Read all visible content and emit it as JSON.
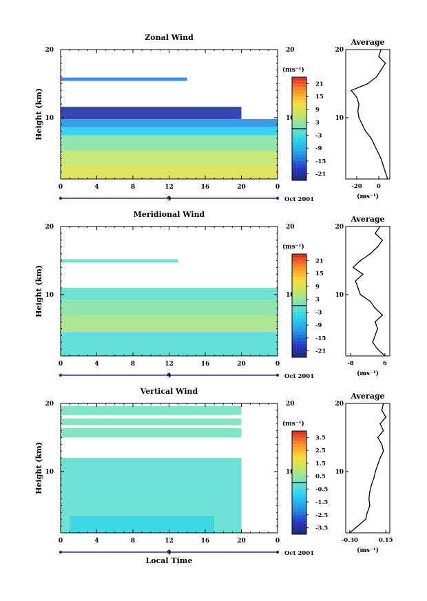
{
  "figure": {
    "x_axis_label": "Local Time",
    "date_label": "Oct 2001",
    "date_marker": "9",
    "ylabel": "Height (km)",
    "unit_label": "(ms⁻¹)",
    "average_title": "Average"
  },
  "chart_data": [
    {
      "type": "heatmap",
      "title": "Zonal Wind",
      "xlabel": "",
      "ylabel": "Height (km)",
      "x_ticks": [
        "0",
        "4",
        "8",
        "12",
        "16",
        "20",
        "0"
      ],
      "xlim": [
        0,
        24
      ],
      "y_ticks": [
        "10",
        "20"
      ],
      "ylim": [
        1,
        20
      ],
      "colorbar": {
        "unit": "(ms⁻¹)",
        "ticks": [
          "21",
          "15",
          "9",
          "3",
          "-3",
          "-9",
          "-15",
          "-21"
        ],
        "range": [
          -24,
          24
        ],
        "contour_level": 0
      },
      "bands": [
        {
          "h1": 15.4,
          "h2": 15.9,
          "t1": 0,
          "t2": 14,
          "v": -13
        },
        {
          "h1": 9.8,
          "h2": 11.6,
          "t1": 0,
          "t2": 20,
          "v": -20
        },
        {
          "h1": 8.6,
          "h2": 9.8,
          "t1": 0,
          "t2": 24,
          "v": -12
        },
        {
          "h1": 7.4,
          "h2": 8.6,
          "t1": 0,
          "t2": 24,
          "v": -6
        },
        {
          "h1": 5.2,
          "h2": 7.4,
          "t1": 0,
          "t2": 24,
          "v": 2
        },
        {
          "h1": 3.0,
          "h2": 5.2,
          "t1": 0,
          "t2": 24,
          "v": 6
        },
        {
          "h1": 1.0,
          "h2": 3.0,
          "t1": 0,
          "t2": 24,
          "v": 9
        }
      ],
      "average": {
        "title": "Average",
        "xlabel": "(ms⁻¹)",
        "x_ticks": [
          "-20",
          "0"
        ],
        "xlim": [
          -30,
          10
        ],
        "heights": [
          1.0,
          2,
          3,
          4,
          5,
          6,
          7,
          8,
          9,
          10,
          11,
          12,
          13,
          14,
          15,
          16,
          17,
          18,
          19,
          20
        ],
        "values": [
          8,
          6,
          4,
          2,
          -1,
          -4,
          -7,
          -12,
          -15,
          -18,
          -19,
          -18,
          -20,
          -25,
          -10,
          -2,
          2,
          6,
          0,
          2
        ]
      }
    },
    {
      "type": "heatmap",
      "title": "Meridional Wind",
      "xlabel": "",
      "ylabel": "Height (km)",
      "x_ticks": [
        "0",
        "4",
        "8",
        "12",
        "16",
        "20",
        "0"
      ],
      "xlim": [
        0,
        24
      ],
      "y_ticks": [
        "10",
        "20"
      ],
      "ylim": [
        1,
        20
      ],
      "colorbar": {
        "unit": "(ms⁻¹)",
        "ticks": [
          "21",
          "15",
          "9",
          "3",
          "-3",
          "-9",
          "-15",
          "-21"
        ],
        "range": [
          -24,
          24
        ],
        "contour_level": 0
      },
      "bands": [
        {
          "h1": 14.7,
          "h2": 15.2,
          "t1": 0,
          "t2": 13,
          "v": -1
        },
        {
          "h1": 9.2,
          "h2": 11.0,
          "t1": 0,
          "t2": 24,
          "v": -1
        },
        {
          "h1": 7.0,
          "h2": 9.2,
          "t1": 0,
          "t2": 24,
          "v": 2
        },
        {
          "h1": 4.5,
          "h2": 7.0,
          "t1": 0,
          "t2": 24,
          "v": 4
        },
        {
          "h1": 1.0,
          "h2": 4.5,
          "t1": 0,
          "t2": 24,
          "v": -2
        }
      ],
      "average": {
        "title": "Average",
        "xlabel": "(ms⁻¹)",
        "x_ticks": [
          "-8",
          "6"
        ],
        "xlim": [
          -10,
          8
        ],
        "heights": [
          1.0,
          2,
          3,
          4,
          5,
          6,
          7,
          8,
          9,
          10,
          11,
          12,
          13,
          14,
          15,
          16,
          17,
          18,
          19,
          20
        ],
        "values": [
          6,
          3,
          1,
          2,
          3,
          2,
          5,
          2,
          0,
          -4,
          -5,
          -6,
          -3,
          -7,
          -4,
          0,
          3,
          5,
          2,
          4
        ]
      }
    },
    {
      "type": "heatmap",
      "title": "Vertical Wind",
      "xlabel": "Local Time",
      "ylabel": "Height (km)",
      "x_ticks": [
        "0",
        "4",
        "8",
        "12",
        "16",
        "20",
        "0"
      ],
      "xlim": [
        0,
        24
      ],
      "y_ticks": [
        "10",
        "20"
      ],
      "ylim": [
        1,
        20
      ],
      "colorbar": {
        "unit": "(ms⁻¹)",
        "ticks": [
          "3.5",
          "2.5",
          "1.5",
          "0.5",
          "-0.5",
          "-1.5",
          "-2.5",
          "-3.5"
        ],
        "range": [
          -4,
          4
        ],
        "contour_level": 0
      },
      "bands": [
        {
          "h1": 18.3,
          "h2": 19.6,
          "t1": 0,
          "t2": 20,
          "v": 0.1
        },
        {
          "h1": 16.8,
          "h2": 17.8,
          "t1": 0,
          "t2": 20,
          "v": 0.2
        },
        {
          "h1": 15.0,
          "h2": 16.4,
          "t1": 0,
          "t2": 20,
          "v": 0.1
        },
        {
          "h1": 1.0,
          "h2": 12.0,
          "t1": 0,
          "t2": 20,
          "v": -0.2
        },
        {
          "h1": 1.0,
          "h2": 3.5,
          "t1": 1,
          "t2": 17,
          "v": -0.7
        }
      ],
      "average": {
        "title": "Average",
        "xlabel": "(ms⁻¹)",
        "x_ticks": [
          "-0.30",
          "0.15"
        ],
        "xlim": [
          -0.35,
          0.2
        ],
        "heights": [
          1.0,
          2,
          3,
          4,
          5,
          6,
          7,
          8,
          9,
          10,
          11,
          12,
          13,
          14,
          15,
          16,
          17,
          18,
          19,
          20
        ],
        "values": [
          -0.3,
          -0.2,
          -0.1,
          -0.08,
          -0.05,
          -0.06,
          -0.05,
          -0.03,
          0.0,
          0.02,
          0.05,
          0.08,
          0.12,
          0.1,
          0.05,
          0.12,
          0.08,
          0.15,
          0.1,
          0.12
        ]
      }
    }
  ]
}
